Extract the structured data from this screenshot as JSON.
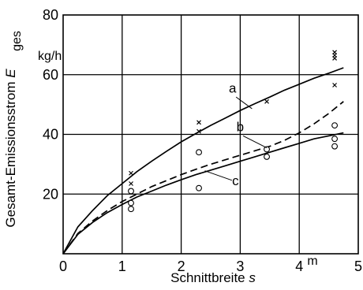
{
  "chart_data": {
    "type": "line",
    "xlabel": "Schnittbreite",
    "xlabel_symbol": "s",
    "x_unit": "m",
    "ylabel": "Gesamt-Emissionsstrom",
    "ylabel_symbol": "E",
    "ylabel_subscript": "ges",
    "y_unit": "kg/h",
    "xlim": [
      0,
      5
    ],
    "ylim": [
      0,
      80
    ],
    "x_ticks": [
      0,
      1,
      2,
      3,
      4,
      5
    ],
    "y_ticks": [
      20,
      40,
      60,
      80
    ],
    "grid": true,
    "series": [
      {
        "name": "a",
        "style": "solid",
        "x": [
          0,
          0.25,
          0.5,
          0.75,
          1.0,
          1.25,
          1.5,
          1.75,
          2.0,
          2.25,
          2.5,
          2.75,
          3.0,
          3.25,
          3.5,
          3.75,
          4.0,
          4.25,
          4.5,
          4.75
        ],
        "y": [
          0,
          9.0,
          14.5,
          19.5,
          23.5,
          27.5,
          31.0,
          34.3,
          37.5,
          40.3,
          43.0,
          45.5,
          48.0,
          50.3,
          52.5,
          54.8,
          56.8,
          58.8,
          60.5,
          62.3
        ]
      },
      {
        "name": "b",
        "style": "dashed",
        "x": [
          0,
          0.25,
          0.5,
          0.75,
          1.0,
          1.25,
          1.5,
          1.75,
          2.0,
          2.25,
          2.5,
          2.75,
          3.0,
          3.25,
          3.5,
          3.75,
          4.0,
          4.25,
          4.5,
          4.75
        ],
        "y": [
          0,
          6.8,
          11.0,
          14.5,
          17.5,
          20.0,
          22.5,
          24.5,
          26.5,
          28.3,
          30.0,
          31.5,
          33.0,
          34.5,
          36.0,
          38.0,
          40.5,
          43.5,
          47.0,
          51.0
        ]
      },
      {
        "name": "c",
        "style": "solid",
        "x": [
          0,
          0.25,
          0.5,
          0.75,
          1.0,
          1.25,
          1.5,
          1.75,
          2.0,
          2.25,
          2.5,
          2.75,
          3.0,
          3.25,
          3.5,
          3.75,
          4.0,
          4.25,
          4.5,
          4.75
        ],
        "y": [
          0,
          6.5,
          10.5,
          13.8,
          16.5,
          19.0,
          21.0,
          23.0,
          24.8,
          26.5,
          28.0,
          29.5,
          31.0,
          32.5,
          34.0,
          35.5,
          37.0,
          38.5,
          39.5,
          40.5
        ]
      }
    ],
    "scatter": [
      {
        "marker": "x",
        "points": [
          [
            1.15,
            27
          ],
          [
            1.15,
            23.5
          ],
          [
            2.3,
            44
          ],
          [
            2.3,
            41
          ],
          [
            3.45,
            51
          ],
          [
            4.6,
            67.5
          ],
          [
            4.6,
            66.5
          ],
          [
            4.6,
            65.5
          ],
          [
            4.6,
            56.5
          ]
        ]
      },
      {
        "marker": "o",
        "points": [
          [
            1.15,
            21
          ],
          [
            1.15,
            17
          ],
          [
            1.15,
            15
          ],
          [
            2.3,
            34
          ],
          [
            2.3,
            22
          ],
          [
            3.45,
            35
          ],
          [
            3.45,
            32.5
          ],
          [
            4.6,
            43
          ],
          [
            4.6,
            38.5
          ],
          [
            4.6,
            36
          ]
        ]
      }
    ],
    "curve_labels": [
      {
        "text": "a",
        "x": 2.87,
        "y": 54
      },
      {
        "text": "b",
        "x": 3.0,
        "y": 41
      },
      {
        "text": "c",
        "x": 2.92,
        "y": 23
      }
    ]
  }
}
